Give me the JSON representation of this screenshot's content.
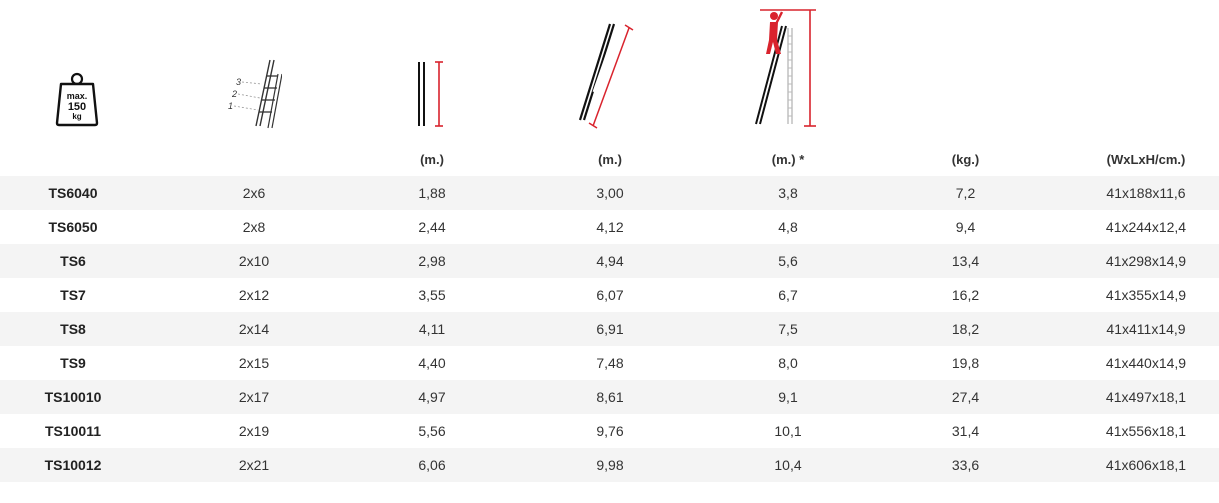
{
  "weight_icon": {
    "line1": "max.",
    "line2": "150",
    "line3": "kg"
  },
  "step_icon": {
    "labels": [
      "3",
      "2",
      "1"
    ]
  },
  "headers": [
    "",
    "",
    "(m.)",
    "(m.)",
    "(m.) *",
    "(kg.)",
    "(WxLxH/cm.)"
  ],
  "rows": [
    [
      "TS6040",
      "2x6",
      "1,88",
      "3,00",
      "3,8",
      "7,2",
      "41x188x11,6"
    ],
    [
      "TS6050",
      "2x8",
      "2,44",
      "4,12",
      "4,8",
      "9,4",
      "41x244x12,4"
    ],
    [
      "TS6",
      "2x10",
      "2,98",
      "4,94",
      "5,6",
      "13,4",
      "41x298x14,9"
    ],
    [
      "TS7",
      "2x12",
      "3,55",
      "6,07",
      "6,7",
      "16,2",
      "41x355x14,9"
    ],
    [
      "TS8",
      "2x14",
      "4,11",
      "6,91",
      "7,5",
      "18,2",
      "41x411x14,9"
    ],
    [
      "TS9",
      "2x15",
      "4,40",
      "7,48",
      "8,0",
      "19,8",
      "41x440x14,9"
    ],
    [
      "TS10010",
      "2x17",
      "4,97",
      "8,61",
      "9,1",
      "27,4",
      "41x497x18,1"
    ],
    [
      "TS10011",
      "2x19",
      "5,56",
      "9,76",
      "10,1",
      "31,4",
      "41x556x18,1"
    ],
    [
      "TS10012",
      "2x21",
      "6,06",
      "9,98",
      "10,4",
      "33,6",
      "41x606x18,1"
    ]
  ],
  "colors": {
    "accent": "#d9232d",
    "ink": "#111111",
    "stripe": "#f4f4f4"
  }
}
